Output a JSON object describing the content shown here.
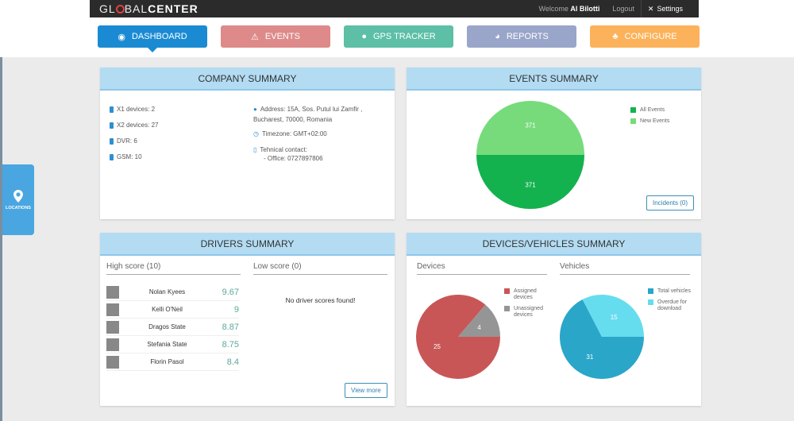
{
  "header": {
    "logo": "GLOBALCENTER",
    "welcome": "Welcome",
    "user": "Al Bilotti",
    "logout": "Logout",
    "settings": "Settings"
  },
  "nav": [
    {
      "label": "DASHBOARD",
      "color": "#1a8bd3",
      "icon": "dashboard-icon"
    },
    {
      "label": "EVENTS",
      "color": "#de8a8a",
      "icon": "warning-icon"
    },
    {
      "label": "GPS TRACKER",
      "color": "#5cbfa6",
      "icon": "map-pin-icon"
    },
    {
      "label": "REPORTS",
      "color": "#99a5c9",
      "icon": "pie-icon"
    },
    {
      "label": "CONFIGURE",
      "color": "#fbb25a",
      "icon": "sitemap-icon"
    }
  ],
  "locations": "LOCATIONS",
  "company": {
    "title": "COMPANY SUMMARY",
    "devices": [
      "X1 devices: 2",
      "X2 devices: 27",
      "DVR: 6",
      "GSM: 10"
    ],
    "address1": "Address: 15A, Sos. Putul lui Zamfir ,",
    "address2": "Bucharest, 70000, Romania",
    "timezone": "Timezone: GMT+02:00",
    "contact": "Tehnical contact:",
    "office": "- Office: 0727897806"
  },
  "events": {
    "title": "EVENTS SUMMARY",
    "button": "Incidents (0)"
  },
  "drivers": {
    "title": "DRIVERS SUMMARY",
    "high": "High score (10)",
    "low": "Low score (0)",
    "empty": "No driver scores found!",
    "button": "View more",
    "list": [
      {
        "name": "Nolan Kyees",
        "score": "9.67"
      },
      {
        "name": "Kelli O'Neil",
        "score": "9"
      },
      {
        "name": "Dragos State",
        "score": "8.87"
      },
      {
        "name": "Stefania State",
        "score": "8.75"
      },
      {
        "name": "Florin Pasol",
        "score": "8.4"
      }
    ]
  },
  "devices": {
    "title": "DEVICES/VEHICLES SUMMARY",
    "devices_label": "Devices",
    "vehicles_label": "Vehicles"
  },
  "chart_data": [
    {
      "type": "pie",
      "series": [
        {
          "name": "All Events",
          "value": 371,
          "color": "#13b24f"
        },
        {
          "name": "New Events",
          "value": 371,
          "color": "#77db7c"
        }
      ]
    },
    {
      "type": "pie",
      "series": [
        {
          "name": "Assigned devices",
          "value": 25,
          "color": "#c95656"
        },
        {
          "name": "Unassigned devices",
          "value": 4,
          "color": "#959595"
        }
      ]
    },
    {
      "type": "pie",
      "series": [
        {
          "name": "Total vehicles",
          "value": 31,
          "color": "#2aa6c8"
        },
        {
          "name": "Overdue for download",
          "value": 15,
          "color": "#66dcef"
        }
      ]
    }
  ]
}
